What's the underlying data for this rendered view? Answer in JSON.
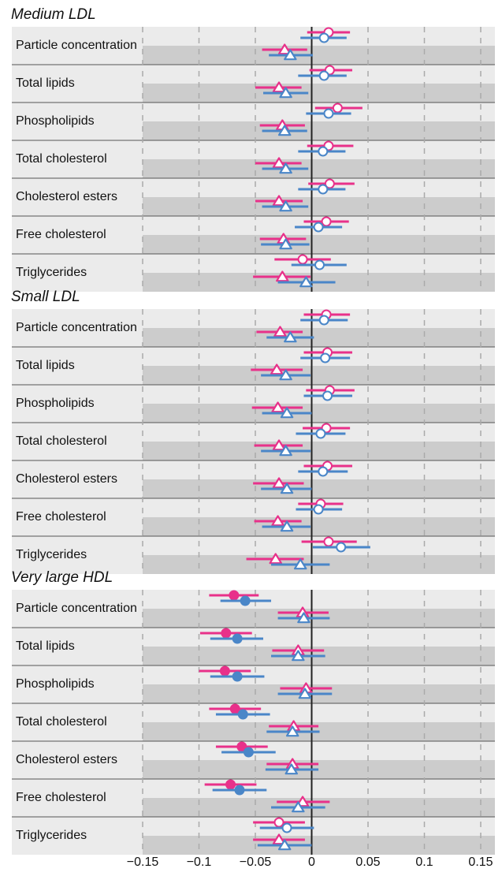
{
  "chart_data": {
    "type": "forest",
    "xlim": [
      -0.165,
      0.165
    ],
    "xticks": [
      {
        "value": -0.15,
        "label": "−0.15"
      },
      {
        "value": -0.1,
        "label": "−0.1"
      },
      {
        "value": -0.05,
        "label": "−0.05"
      },
      0,
      0.05,
      0.1,
      0.15
    ],
    "panels": [
      {
        "title": "Medium LDL",
        "categories": [
          "Particle concentration",
          "Total lipids",
          "Phospholipids",
          "Total cholesterol",
          "Cholesterol esters",
          "Free cholesterol",
          "Triglycerides"
        ],
        "series": [
          {
            "color": "#e8318a",
            "marker": "circle",
            "filled": [
              false,
              false,
              false,
              false,
              false,
              false,
              false
            ],
            "values": [
              0.015,
              0.016,
              0.023,
              0.015,
              0.016,
              0.013,
              -0.008
            ],
            "lower": [
              -0.004,
              -0.002,
              0.003,
              -0.004,
              -0.003,
              -0.007,
              -0.033
            ],
            "upper": [
              0.034,
              0.036,
              0.045,
              0.037,
              0.038,
              0.033,
              0.017
            ]
          },
          {
            "color": "#4a86c8",
            "marker": "circle",
            "filled": [
              false,
              false,
              false,
              false,
              false,
              false,
              false
            ],
            "values": [
              0.011,
              0.011,
              0.015,
              0.01,
              0.01,
              0.006,
              0.007
            ],
            "lower": [
              -0.01,
              -0.012,
              -0.005,
              -0.012,
              -0.012,
              -0.015,
              -0.018
            ],
            "upper": [
              0.031,
              0.031,
              0.035,
              0.03,
              0.03,
              0.027,
              0.031
            ]
          },
          {
            "color": "#e8318a",
            "marker": "triangle",
            "filled": [
              false,
              false,
              false,
              false,
              false,
              false,
              false
            ],
            "values": [
              -0.024,
              -0.029,
              -0.026,
              -0.029,
              -0.029,
              -0.025,
              -0.026
            ],
            "lower": [
              -0.044,
              -0.05,
              -0.046,
              -0.05,
              -0.05,
              -0.046,
              -0.052
            ],
            "upper": [
              -0.004,
              -0.009,
              -0.006,
              -0.009,
              -0.008,
              -0.005,
              -0.001
            ]
          },
          {
            "color": "#4a86c8",
            "marker": "triangle",
            "filled": [
              false,
              false,
              false,
              false,
              false,
              false,
              false
            ],
            "values": [
              -0.019,
              -0.023,
              -0.024,
              -0.023,
              -0.023,
              -0.023,
              -0.005
            ],
            "lower": [
              -0.038,
              -0.043,
              -0.044,
              -0.044,
              -0.044,
              -0.045,
              -0.03
            ],
            "upper": [
              0.001,
              -0.003,
              -0.004,
              -0.003,
              -0.003,
              -0.002,
              0.021
            ]
          }
        ]
      },
      {
        "title": "Small LDL",
        "categories": [
          "Particle concentration",
          "Total lipids",
          "Phospholipids",
          "Total cholesterol",
          "Cholesterol esters",
          "Free cholesterol",
          "Triglycerides"
        ],
        "series": [
          {
            "color": "#e8318a",
            "marker": "circle",
            "filled": [
              false,
              false,
              false,
              false,
              false,
              false,
              false
            ],
            "values": [
              0.013,
              0.014,
              0.016,
              0.013,
              0.014,
              0.008,
              0.015
            ],
            "lower": [
              -0.007,
              -0.007,
              -0.005,
              -0.008,
              -0.007,
              -0.012,
              -0.009
            ],
            "upper": [
              0.034,
              0.036,
              0.038,
              0.034,
              0.036,
              0.028,
              0.04
            ]
          },
          {
            "color": "#4a86c8",
            "marker": "circle",
            "filled": [
              false,
              false,
              false,
              false,
              false,
              false,
              false
            ],
            "values": [
              0.011,
              0.012,
              0.014,
              0.008,
              0.01,
              0.006,
              0.026
            ],
            "lower": [
              -0.01,
              -0.01,
              -0.007,
              -0.014,
              -0.012,
              -0.014,
              0.001
            ],
            "upper": [
              0.032,
              0.034,
              0.036,
              0.03,
              0.032,
              0.027,
              0.052
            ]
          },
          {
            "color": "#e8318a",
            "marker": "triangle",
            "filled": [
              false,
              false,
              false,
              false,
              false,
              false,
              false
            ],
            "values": [
              -0.028,
              -0.031,
              -0.03,
              -0.029,
              -0.029,
              -0.03,
              -0.032
            ],
            "lower": [
              -0.049,
              -0.054,
              -0.053,
              -0.051,
              -0.052,
              -0.051,
              -0.058
            ],
            "upper": [
              -0.008,
              -0.008,
              -0.008,
              -0.008,
              -0.007,
              -0.009,
              -0.007
            ]
          },
          {
            "color": "#4a86c8",
            "marker": "triangle",
            "filled": [
              false,
              false,
              false,
              false,
              false,
              false,
              false
            ],
            "values": [
              -0.019,
              -0.023,
              -0.022,
              -0.023,
              -0.022,
              -0.022,
              -0.01
            ],
            "lower": [
              -0.04,
              -0.045,
              -0.044,
              -0.045,
              -0.045,
              -0.044,
              -0.036
            ],
            "upper": [
              0.002,
              -0.001,
              0.0,
              -0.001,
              0.0,
              -0.001,
              0.016
            ]
          }
        ]
      },
      {
        "title": "Very large HDL",
        "categories": [
          "Particle concentration",
          "Total lipids",
          "Phospholipids",
          "Total cholesterol",
          "Cholesterol esters",
          "Free cholesterol",
          "Triglycerides"
        ],
        "series": [
          {
            "color": "#e8318a",
            "marker": "circle",
            "filled": [
              true,
              true,
              true,
              true,
              true,
              true,
              false
            ],
            "values": [
              -0.069,
              -0.076,
              -0.077,
              -0.068,
              -0.062,
              -0.072,
              -0.029
            ],
            "lower": [
              -0.091,
              -0.099,
              -0.1,
              -0.091,
              -0.085,
              -0.095,
              -0.052
            ],
            "upper": [
              -0.047,
              -0.053,
              -0.054,
              -0.045,
              -0.039,
              -0.049,
              -0.006
            ]
          },
          {
            "color": "#4a86c8",
            "marker": "circle",
            "filled": [
              true,
              true,
              true,
              true,
              true,
              true,
              false
            ],
            "values": [
              -0.059,
              -0.066,
              -0.066,
              -0.061,
              -0.056,
              -0.064,
              -0.022
            ],
            "lower": [
              -0.081,
              -0.09,
              -0.09,
              -0.085,
              -0.08,
              -0.088,
              -0.046
            ],
            "upper": [
              -0.036,
              -0.043,
              -0.042,
              -0.037,
              -0.032,
              -0.04,
              0.002
            ]
          },
          {
            "color": "#e8318a",
            "marker": "triangle",
            "filled": [
              false,
              false,
              false,
              false,
              false,
              false,
              false
            ],
            "values": [
              -0.008,
              -0.012,
              -0.005,
              -0.016,
              -0.017,
              -0.008,
              -0.029
            ],
            "lower": [
              -0.03,
              -0.035,
              -0.028,
              -0.038,
              -0.04,
              -0.031,
              -0.052
            ],
            "upper": [
              0.015,
              0.011,
              0.018,
              0.006,
              0.006,
              0.016,
              -0.006
            ]
          },
          {
            "color": "#4a86c8",
            "marker": "triangle",
            "filled": [
              false,
              false,
              false,
              false,
              false,
              false,
              false
            ],
            "values": [
              -0.007,
              -0.012,
              -0.006,
              -0.017,
              -0.018,
              -0.012,
              -0.024
            ],
            "lower": [
              -0.03,
              -0.036,
              -0.03,
              -0.04,
              -0.041,
              -0.036,
              -0.048
            ],
            "upper": [
              0.016,
              0.012,
              0.018,
              0.007,
              0.006,
              0.012,
              0.0
            ]
          }
        ]
      }
    ]
  }
}
